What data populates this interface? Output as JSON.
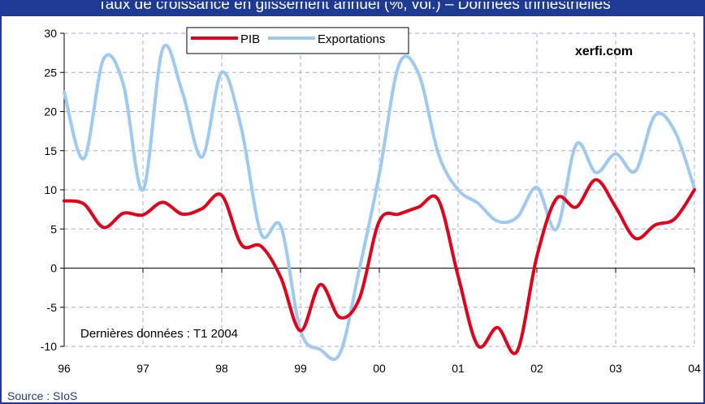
{
  "header": {
    "title": "Taux de croissance en glissement annuel (%, vol.) – Données trimestrielles"
  },
  "footer": {
    "source": "Source : SIoS"
  },
  "colors": {
    "frame": "#1f3a93",
    "pib": "#e3001b",
    "exportations": "#9ec9f0",
    "grid": "#a9a9d9"
  },
  "chart_data": {
    "type": "line",
    "title": "Taux de croissance en glissement annuel (%, vol.) – Données trimestrielles",
    "xlabel": "",
    "ylabel": "",
    "xlim": [
      96,
      104
    ],
    "ylim": [
      -10,
      30
    ],
    "x_ticks": [
      "96",
      "97",
      "98",
      "99",
      "00",
      "01",
      "02",
      "03",
      "04"
    ],
    "y_ticks": [
      "30",
      "25",
      "20",
      "15",
      "10",
      "5",
      "0",
      "-5",
      "-10"
    ],
    "grid": true,
    "legend_position": "top-center",
    "annotations": [
      "xerfi.com",
      "Dernières données : T1 2004"
    ],
    "series": [
      {
        "name": "PIB",
        "color": "#e3001b",
        "x": [
          96,
          96.25,
          96.5,
          96.75,
          97,
          97.25,
          97.5,
          97.75,
          98,
          98.25,
          98.5,
          98.75,
          99,
          99.25,
          99.5,
          99.75,
          100,
          100.25,
          100.5,
          100.75,
          101,
          101.25,
          101.5,
          101.75,
          102,
          102.25,
          102.5,
          102.75,
          103,
          103.25,
          103.5,
          103.75,
          104
        ],
        "values": [
          8.6,
          8.2,
          5.2,
          7.0,
          6.8,
          8.4,
          6.9,
          7.6,
          9.3,
          3.0,
          2.8,
          -1.2,
          -8.0,
          -2.1,
          -6.3,
          -3.8,
          6.0,
          6.9,
          7.8,
          8.7,
          -1.0,
          -9.9,
          -7.6,
          -10.6,
          1.5,
          8.9,
          7.8,
          11.3,
          7.8,
          3.8,
          5.5,
          6.3,
          10.0
        ]
      },
      {
        "name": "Exportations",
        "color": "#9ec9f0",
        "x": [
          96,
          96.25,
          96.5,
          96.75,
          97,
          97.25,
          97.5,
          97.75,
          98,
          98.25,
          98.5,
          98.75,
          99,
          99.25,
          99.5,
          99.75,
          100,
          100.25,
          100.5,
          100.75,
          101,
          101.25,
          101.5,
          101.75,
          102,
          102.25,
          102.5,
          102.75,
          103,
          103.25,
          103.5,
          103.75,
          104
        ],
        "values": [
          22.5,
          14.0,
          26.7,
          23.5,
          10.0,
          28.0,
          22.5,
          14.2,
          25.0,
          17.8,
          4.4,
          5.3,
          -8.0,
          -10.4,
          -10.9,
          0.0,
          12.0,
          26.0,
          24.8,
          14.6,
          10.0,
          8.3,
          6.0,
          6.5,
          10.3,
          5.0,
          15.8,
          12.2,
          14.6,
          12.4,
          19.5,
          17.5,
          10.2
        ]
      }
    ]
  }
}
